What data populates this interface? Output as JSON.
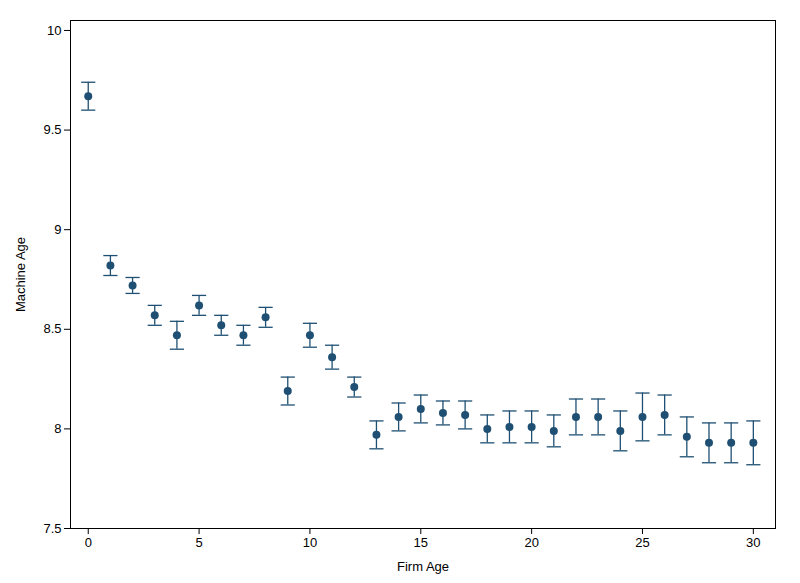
{
  "chart_data": {
    "type": "scatter",
    "x": [
      0,
      1,
      2,
      3,
      4,
      5,
      6,
      7,
      8,
      9,
      10,
      11,
      12,
      13,
      14,
      15,
      16,
      17,
      18,
      19,
      20,
      21,
      22,
      23,
      24,
      25,
      26,
      27,
      28,
      29,
      30
    ],
    "values": [
      9.67,
      8.82,
      8.72,
      8.57,
      8.47,
      8.62,
      8.52,
      8.47,
      8.56,
      8.19,
      8.47,
      8.36,
      8.21,
      7.97,
      8.06,
      8.1,
      8.08,
      8.07,
      8.0,
      8.01,
      8.01,
      7.99,
      8.06,
      8.06,
      7.99,
      8.06,
      8.07,
      7.96,
      7.93,
      7.93,
      7.93
    ],
    "error_low": [
      0.07,
      0.05,
      0.04,
      0.05,
      0.07,
      0.05,
      0.05,
      0.05,
      0.05,
      0.07,
      0.06,
      0.06,
      0.05,
      0.07,
      0.07,
      0.07,
      0.06,
      0.07,
      0.07,
      0.08,
      0.08,
      0.08,
      0.09,
      0.09,
      0.1,
      0.12,
      0.1,
      0.1,
      0.1,
      0.1,
      0.11
    ],
    "error_high": [
      0.07,
      0.05,
      0.04,
      0.05,
      0.07,
      0.05,
      0.05,
      0.05,
      0.05,
      0.07,
      0.06,
      0.06,
      0.05,
      0.07,
      0.07,
      0.07,
      0.06,
      0.07,
      0.07,
      0.08,
      0.08,
      0.08,
      0.09,
      0.09,
      0.1,
      0.12,
      0.1,
      0.1,
      0.1,
      0.1,
      0.11
    ],
    "xlabel": "Firm Age",
    "ylabel": "Machine Age",
    "xlim": [
      -0.8,
      31.0
    ],
    "ylim": [
      7.5,
      10.05
    ],
    "xticks": [
      0,
      5,
      10,
      15,
      20,
      25,
      30
    ],
    "yticks": [
      7.5,
      8,
      8.5,
      9,
      9.5,
      10
    ],
    "color": "#1f5073",
    "marker": "circle",
    "grid": false
  }
}
